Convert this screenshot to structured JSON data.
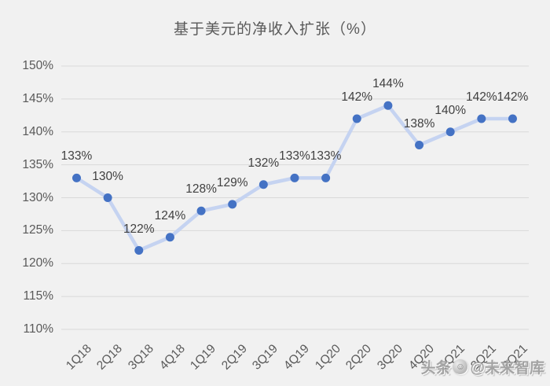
{
  "chart_data": {
    "type": "line",
    "title": "基于美元的净收入扩张（%）",
    "categories": [
      "1Q18",
      "2Q18",
      "3Q18",
      "4Q18",
      "1Q19",
      "2Q19",
      "3Q19",
      "4Q19",
      "1Q20",
      "2Q20",
      "3Q20",
      "4Q20",
      "1Q21",
      "2Q21",
      "3Q21"
    ],
    "values": [
      133,
      130,
      122,
      124,
      128,
      129,
      132,
      133,
      133,
      142,
      144,
      138,
      140,
      142,
      142
    ],
    "data_labels": [
      "133%",
      "130%",
      "122%",
      "124%",
      "128%",
      "129%",
      "132%",
      "133%",
      "133%",
      "142%",
      "144%",
      "138%",
      "140%",
      "142%",
      "142%"
    ],
    "ylim": [
      110,
      150
    ],
    "ytick_step": 5,
    "ytick_labels": [
      "150%",
      "145%",
      "140%",
      "135%",
      "130%",
      "125%",
      "120%",
      "115%",
      "110%"
    ],
    "xlabel": "",
    "ylabel": "",
    "grid": true,
    "legend": false
  },
  "watermark": {
    "prefix": "头条",
    "handle": "@未来智库",
    "avatar_icon": "smiley-avatar",
    "avatar_glyph": "☺"
  },
  "colors": {
    "background": "#f1f1f1",
    "grid": "#d9d9d9",
    "line": "#c5d3f1",
    "marker": "#4472c4",
    "axis_text": "#595959",
    "data_label_text": "#404040",
    "title_text": "#595959"
  }
}
